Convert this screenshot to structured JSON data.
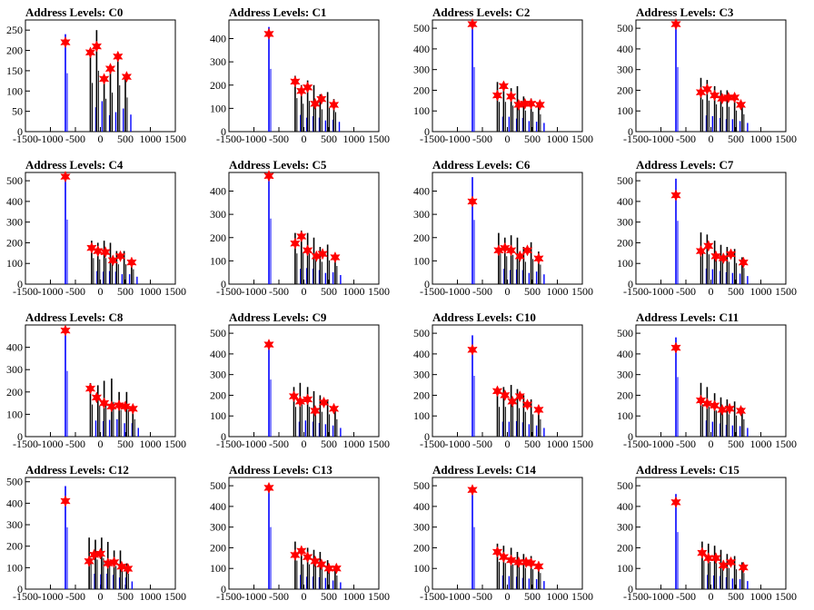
{
  "colors": {
    "peak_bar": "#0000ff",
    "histogram": "#000000",
    "marker": "#ff0000",
    "background": "#ffffff"
  },
  "shared_x_ticks": [
    "-1500",
    "-1000",
    "-500",
    "0",
    "500",
    "1000",
    "1500"
  ],
  "chart_data": [
    {
      "type": "bar",
      "title": "Address Levels: C0",
      "xlim": [
        -1500,
        1500
      ],
      "ylim": [
        0,
        275
      ],
      "yticks": [
        0,
        50,
        100,
        150,
        200,
        250
      ],
      "series": [
        {
          "x": [
            -700,
            -200,
            -75,
            75,
            200,
            350,
            500
          ],
          "values": [
            240,
            200,
            250,
            135,
            160,
            190,
            140
          ]
        }
      ],
      "peaks": {
        "x": [
          -700,
          -200,
          -75,
          75,
          200,
          350,
          525
        ],
        "values": [
          220,
          195,
          210,
          130,
          155,
          185,
          135
        ]
      }
    },
    {
      "type": "bar",
      "title": "Address Levels: C1",
      "xlim": [
        -1500,
        1500
      ],
      "ylim": [
        0,
        480
      ],
      "yticks": [
        0,
        100,
        200,
        300,
        400
      ],
      "series": [
        {
          "x": [
            -700,
            -175,
            -50,
            75,
            200,
            325,
            475,
            600
          ],
          "values": [
            450,
            240,
            200,
            220,
            200,
            160,
            170,
            140
          ]
        }
      ],
      "peaks": {
        "x": [
          -700,
          -175,
          -50,
          75,
          225,
          350,
          600
        ],
        "values": [
          420,
          215,
          175,
          190,
          120,
          140,
          115
        ]
      }
    },
    {
      "type": "bar",
      "title": "Address Levels: C2",
      "xlim": [
        -1500,
        1500
      ],
      "ylim": [
        0,
        540
      ],
      "yticks": [
        0,
        100,
        200,
        300,
        400,
        500
      ],
      "series": [
        {
          "x": [
            -700,
            -200,
            -75,
            75,
            200,
            325,
            475,
            625
          ],
          "values": [
            520,
            240,
            240,
            210,
            220,
            170,
            160,
            140
          ]
        }
      ],
      "peaks": {
        "x": [
          -700,
          -200,
          -75,
          75,
          225,
          350,
          475,
          650
        ],
        "values": [
          520,
          175,
          220,
          170,
          130,
          135,
          135,
          130
        ]
      }
    },
    {
      "type": "bar",
      "title": "Address Levels: C3",
      "xlim": [
        -1500,
        1500
      ],
      "ylim": [
        0,
        540
      ],
      "yticks": [
        0,
        100,
        200,
        300,
        400,
        500
      ],
      "series": [
        {
          "x": [
            -700,
            -200,
            -75,
            75,
            200,
            325,
            475,
            625
          ],
          "values": [
            520,
            260,
            250,
            220,
            200,
            200,
            170,
            140
          ]
        }
      ],
      "peaks": {
        "x": [
          -700,
          -200,
          -75,
          75,
          225,
          350,
          475,
          600
        ],
        "values": [
          520,
          190,
          205,
          175,
          160,
          165,
          165,
          130
        ]
      }
    },
    {
      "type": "bar",
      "title": "Address Levels: C4",
      "xlim": [
        -1500,
        1500
      ],
      "ylim": [
        0,
        540
      ],
      "yticks": [
        0,
        100,
        200,
        300,
        400,
        500
      ],
      "series": [
        {
          "x": [
            -700,
            -175,
            -50,
            75,
            200,
            325,
            475,
            625
          ],
          "values": [
            520,
            210,
            200,
            210,
            200,
            160,
            160,
            120
          ]
        }
      ],
      "peaks": {
        "x": [
          -700,
          -175,
          -50,
          100,
          250,
          400,
          625
        ],
        "values": [
          520,
          175,
          160,
          155,
          115,
          135,
          105
        ]
      }
    },
    {
      "type": "bar",
      "title": "Address Levels: C5",
      "xlim": [
        -1500,
        1500
      ],
      "ylim": [
        0,
        480
      ],
      "yticks": [
        0,
        100,
        200,
        300,
        400
      ],
      "series": [
        {
          "x": [
            -700,
            -175,
            -50,
            75,
            200,
            325,
            475,
            625
          ],
          "values": [
            470,
            220,
            230,
            220,
            200,
            160,
            170,
            130
          ]
        }
      ],
      "peaks": {
        "x": [
          -700,
          -175,
          -50,
          75,
          250,
          375,
          625
        ],
        "values": [
          465,
          175,
          205,
          145,
          120,
          130,
          115
        ]
      }
    },
    {
      "type": "bar",
      "title": "Address Levels: C6",
      "xlim": [
        -1500,
        1500
      ],
      "ylim": [
        0,
        480
      ],
      "yticks": [
        0,
        100,
        200,
        300,
        400
      ],
      "series": [
        {
          "x": [
            -700,
            -175,
            -50,
            75,
            200,
            325,
            475,
            625
          ],
          "values": [
            460,
            220,
            200,
            210,
            200,
            160,
            180,
            140
          ]
        }
      ],
      "peaks": {
        "x": [
          -700,
          -175,
          -50,
          75,
          250,
          400,
          625
        ],
        "values": [
          355,
          145,
          155,
          145,
          120,
          145,
          110
        ]
      }
    },
    {
      "type": "bar",
      "title": "Address Levels: C7",
      "xlim": [
        -1500,
        1500
      ],
      "ylim": [
        0,
        540
      ],
      "yticks": [
        0,
        100,
        200,
        300,
        400,
        500
      ],
      "series": [
        {
          "x": [
            -700,
            -200,
            -75,
            75,
            200,
            325,
            475,
            625
          ],
          "values": [
            510,
            250,
            240,
            210,
            190,
            180,
            170,
            130
          ]
        }
      ],
      "peaks": {
        "x": [
          -700,
          -200,
          -50,
          100,
          250,
          400,
          650
        ],
        "values": [
          430,
          160,
          185,
          135,
          125,
          145,
          105
        ]
      }
    },
    {
      "type": "bar",
      "title": "Address Levels: C8",
      "xlim": [
        -1500,
        1500
      ],
      "ylim": [
        0,
        500
      ],
      "yticks": [
        0,
        100,
        200,
        300,
        400
      ],
      "series": [
        {
          "x": [
            -700,
            -200,
            -50,
            75,
            225,
            375,
            525,
            650
          ],
          "values": [
            490,
            240,
            230,
            250,
            260,
            200,
            200,
            130
          ]
        }
      ],
      "peaks": {
        "x": [
          -700,
          -200,
          -75,
          75,
          225,
          375,
          500,
          650
        ],
        "values": [
          475,
          215,
          175,
          150,
          135,
          140,
          135,
          125
        ]
      }
    },
    {
      "type": "bar",
      "title": "Address Levels: C9",
      "xlim": [
        -1500,
        1500
      ],
      "ylim": [
        0,
        540
      ],
      "yticks": [
        0,
        100,
        200,
        300,
        400,
        500
      ],
      "series": [
        {
          "x": [
            -700,
            -200,
            -75,
            75,
            200,
            325,
            475,
            625
          ],
          "values": [
            460,
            240,
            260,
            240,
            220,
            200,
            180,
            140
          ]
        }
      ],
      "peaks": {
        "x": [
          -700,
          -200,
          -75,
          75,
          225,
          400,
          600
        ],
        "values": [
          445,
          195,
          170,
          180,
          125,
          165,
          135
        ]
      }
    },
    {
      "type": "bar",
      "title": "Address Levels: C10",
      "xlim": [
        -1500,
        1500
      ],
      "ylim": [
        0,
        540
      ],
      "yticks": [
        0,
        100,
        200,
        300,
        400,
        500
      ],
      "series": [
        {
          "x": [
            -700,
            -200,
            -75,
            75,
            200,
            325,
            475,
            625
          ],
          "values": [
            490,
            240,
            240,
            250,
            230,
            200,
            180,
            140
          ]
        }
      ],
      "peaks": {
        "x": [
          -700,
          -200,
          -50,
          100,
          250,
          400,
          625
        ],
        "values": [
          420,
          220,
          200,
          170,
          195,
          155,
          130
        ]
      }
    },
    {
      "type": "bar",
      "title": "Address Levels: C11",
      "xlim": [
        -1500,
        1500
      ],
      "ylim": [
        0,
        540
      ],
      "yticks": [
        0,
        100,
        200,
        300,
        400,
        500
      ],
      "series": [
        {
          "x": [
            -700,
            -200,
            -75,
            75,
            200,
            325,
            475,
            625
          ],
          "values": [
            480,
            260,
            240,
            210,
            190,
            180,
            170,
            140
          ]
        }
      ],
      "peaks": {
        "x": [
          -700,
          -200,
          -75,
          75,
          225,
          375,
          600
        ],
        "values": [
          430,
          175,
          160,
          150,
          130,
          135,
          125
        ]
      }
    },
    {
      "type": "bar",
      "title": "Address Levels: C12",
      "xlim": [
        -1500,
        1500
      ],
      "ylim": [
        0,
        520
      ],
      "yticks": [
        0,
        100,
        200,
        300,
        400,
        500
      ],
      "series": [
        {
          "x": [
            -700,
            -225,
            -100,
            25,
            150,
            275,
            400,
            525
          ],
          "values": [
            480,
            240,
            230,
            240,
            220,
            180,
            180,
            120
          ]
        }
      ],
      "peaks": {
        "x": [
          -700,
          -225,
          -125,
          0,
          150,
          275,
          425,
          550
        ],
        "values": [
          410,
          130,
          160,
          165,
          120,
          125,
          105,
          95
        ]
      }
    },
    {
      "type": "bar",
      "title": "Address Levels: C13",
      "xlim": [
        -1500,
        1500
      ],
      "ylim": [
        0,
        540
      ],
      "yticks": [
        0,
        100,
        200,
        300,
        400,
        500
      ],
      "series": [
        {
          "x": [
            -700,
            -175,
            -50,
            75,
            200,
            325,
            475,
            625
          ],
          "values": [
            500,
            230,
            200,
            200,
            190,
            180,
            140,
            110
          ]
        }
      ],
      "peaks": {
        "x": [
          -700,
          -175,
          -50,
          75,
          225,
          350,
          500,
          650
        ],
        "values": [
          490,
          165,
          185,
          155,
          135,
          120,
          100,
          100
        ]
      }
    },
    {
      "type": "bar",
      "title": "Address Levels: C14",
      "xlim": [
        -1500,
        1500
      ],
      "ylim": [
        0,
        540
      ],
      "yticks": [
        0,
        100,
        200,
        300,
        400,
        500
      ],
      "series": [
        {
          "x": [
            -700,
            -200,
            -75,
            75,
            200,
            325,
            475,
            625
          ],
          "values": [
            500,
            220,
            210,
            200,
            180,
            170,
            160,
            130
          ]
        }
      ],
      "peaks": {
        "x": [
          -700,
          -200,
          -75,
          75,
          225,
          375,
          475,
          625
        ],
        "values": [
          480,
          180,
          155,
          140,
          130,
          130,
          125,
          110
        ]
      }
    },
    {
      "type": "bar",
      "title": "Address Levels: C15",
      "xlim": [
        -1500,
        1500
      ],
      "ylim": [
        0,
        540
      ],
      "yticks": [
        0,
        100,
        200,
        300,
        400,
        500
      ],
      "series": [
        {
          "x": [
            -700,
            -175,
            -50,
            75,
            200,
            325,
            475,
            625
          ],
          "values": [
            460,
            230,
            220,
            210,
            190,
            170,
            160,
            130
          ]
        }
      ],
      "peaks": {
        "x": [
          -700,
          -175,
          -50,
          100,
          250,
          400,
          650
        ],
        "values": [
          420,
          175,
          150,
          150,
          115,
          130,
          105
        ]
      }
    }
  ]
}
